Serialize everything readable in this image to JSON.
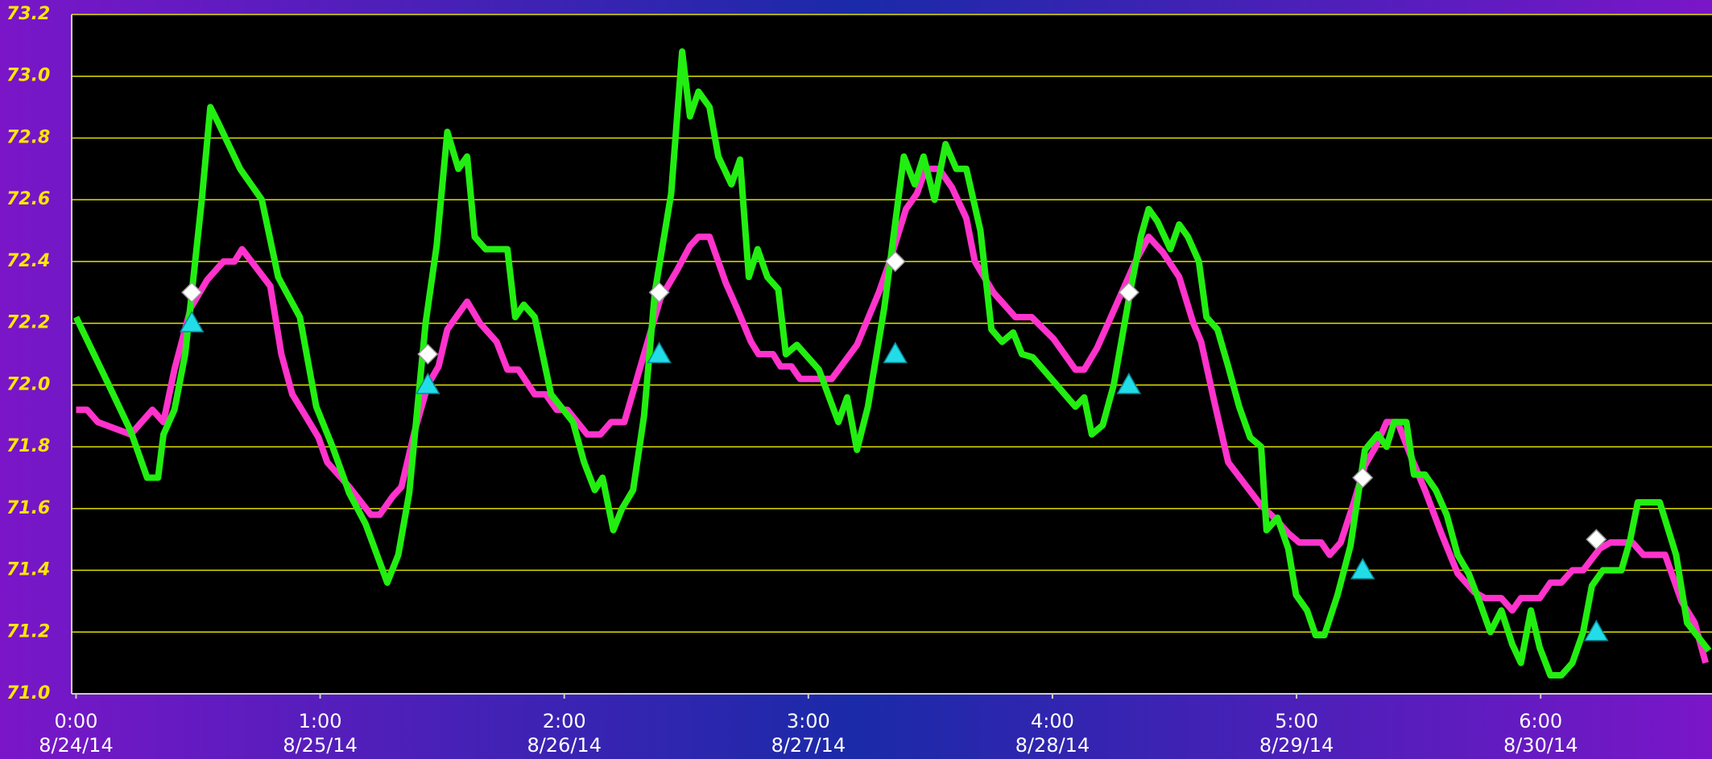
{
  "chart_data": {
    "type": "line",
    "background": [
      "#7a16c8",
      "#1a2aa8",
      "#7a16c8"
    ],
    "plot_background": "#000000",
    "grid": true,
    "grid_color": "#e0e000",
    "xlim": [
      -0.018,
      6.702
    ],
    "xticks": [
      {
        "value": 0,
        "label": "0:00",
        "date": "8/24/14"
      },
      {
        "value": 1,
        "label": "1:00",
        "date": "8/25/14"
      },
      {
        "value": 2,
        "label": "2:00",
        "date": "8/26/14"
      },
      {
        "value": 3,
        "label": "3:00",
        "date": "8/27/14"
      },
      {
        "value": 4,
        "label": "4:00",
        "date": "8/28/14"
      },
      {
        "value": 5,
        "label": "5:00",
        "date": "8/29/14"
      },
      {
        "value": 6,
        "label": "6:00",
        "date": "8/30/14"
      }
    ],
    "ylim": [
      71.0,
      73.2
    ],
    "yticks": [
      {
        "value": 71.0,
        "label": "71.0"
      },
      71.2,
      71.4,
      71.6,
      71.8,
      {
        "value": 72.0,
        "label": "72.0"
      },
      72.2,
      72.4,
      72.6,
      72.8,
      {
        "value": 73.0,
        "label": "73.0"
      },
      73.2
    ],
    "series": [
      {
        "color": "#ff33cc",
        "marker": "line",
        "x": [
          0,
          0.045,
          0.089,
          0.224,
          0.313,
          0.358,
          0.403,
          0.47,
          0.537,
          0.604,
          0.649,
          0.68,
          0.738,
          0.796,
          0.841,
          0.886,
          0.94,
          0.993,
          1.029,
          1.119,
          1.208,
          1.244,
          1.298,
          1.333,
          1.387,
          1.441,
          1.485,
          1.521,
          1.602,
          1.655,
          1.723,
          1.767,
          1.812,
          1.879,
          1.924,
          1.969,
          2.013,
          2.094,
          2.148,
          2.192,
          2.246,
          2.327,
          2.394,
          2.461,
          2.515,
          2.55,
          2.595,
          2.662,
          2.707,
          2.765,
          2.796,
          2.855,
          2.886,
          2.931,
          2.966,
          3.043,
          3.096,
          3.199,
          3.289,
          3.333,
          3.4,
          3.445,
          3.481,
          3.535,
          3.588,
          3.647,
          3.682,
          3.758,
          3.848,
          3.915,
          4.004,
          4.094,
          4.13,
          4.183,
          4.228,
          4.273,
          4.34,
          4.394,
          4.452,
          4.519,
          4.577,
          4.609,
          4.662,
          4.72,
          4.787,
          4.855,
          4.922,
          4.966,
          5.011,
          5.101,
          5.136,
          5.181,
          5.235,
          5.28,
          5.324,
          5.369,
          5.414,
          5.468,
          5.526,
          5.593,
          5.66,
          5.727,
          5.772,
          5.839,
          5.884,
          5.919,
          5.996,
          6.04,
          6.085,
          6.13,
          6.174,
          6.242,
          6.286,
          6.376,
          6.421,
          6.51,
          6.577,
          6.631,
          6.676
        ],
        "values": [
          71.92,
          71.92,
          71.88,
          71.84,
          71.92,
          71.88,
          72.05,
          72.25,
          72.34,
          72.4,
          72.4,
          72.44,
          72.38,
          72.32,
          72.1,
          71.97,
          71.9,
          71.83,
          71.75,
          71.67,
          71.58,
          71.58,
          71.64,
          71.67,
          71.85,
          72.0,
          72.06,
          72.18,
          72.27,
          72.2,
          72.14,
          72.05,
          72.05,
          71.97,
          71.97,
          71.92,
          71.92,
          71.84,
          71.84,
          71.88,
          71.88,
          72.1,
          72.28,
          72.37,
          72.45,
          72.48,
          72.48,
          72.33,
          72.25,
          72.14,
          72.1,
          72.1,
          72.06,
          72.06,
          72.02,
          72.02,
          72.02,
          72.13,
          72.3,
          72.4,
          72.57,
          72.62,
          72.7,
          72.7,
          72.64,
          72.54,
          72.4,
          72.3,
          72.22,
          72.22,
          72.15,
          72.05,
          72.05,
          72.12,
          72.2,
          72.28,
          72.4,
          72.48,
          72.43,
          72.35,
          72.2,
          72.14,
          71.95,
          71.75,
          71.68,
          71.61,
          71.56,
          71.52,
          71.49,
          71.49,
          71.45,
          71.49,
          71.62,
          71.74,
          71.8,
          71.88,
          71.88,
          71.77,
          71.66,
          71.52,
          71.39,
          71.33,
          71.31,
          71.31,
          71.27,
          71.31,
          71.31,
          71.36,
          71.36,
          71.4,
          71.4,
          71.47,
          71.49,
          71.49,
          71.45,
          71.45,
          71.3,
          71.23,
          71.1
        ]
      },
      {
        "color": "#22ee11",
        "marker": "line",
        "x": [
          0,
          0.134,
          0.224,
          0.291,
          0.336,
          0.358,
          0.403,
          0.447,
          0.515,
          0.55,
          0.582,
          0.672,
          0.761,
          0.828,
          0.917,
          0.984,
          1.051,
          1.119,
          1.186,
          1.275,
          1.32,
          1.365,
          1.432,
          1.477,
          1.521,
          1.566,
          1.602,
          1.633,
          1.678,
          1.767,
          1.799,
          1.834,
          1.879,
          1.946,
          2.036,
          2.081,
          2.125,
          2.157,
          2.201,
          2.237,
          2.282,
          2.327,
          2.371,
          2.438,
          2.483,
          2.515,
          2.55,
          2.595,
          2.631,
          2.685,
          2.72,
          2.756,
          2.792,
          2.832,
          2.877,
          2.908,
          2.953,
          3.043,
          3.123,
          3.159,
          3.199,
          3.244,
          3.311,
          3.391,
          3.436,
          3.472,
          3.517,
          3.562,
          3.606,
          3.647,
          3.705,
          3.75,
          3.794,
          3.839,
          3.875,
          3.919,
          4.094,
          4.13,
          4.161,
          4.206,
          4.251,
          4.318,
          4.362,
          4.394,
          4.43,
          4.483,
          4.519,
          4.555,
          4.6,
          4.631,
          4.676,
          4.72,
          4.765,
          4.81,
          4.855,
          4.877,
          4.922,
          4.966,
          4.998,
          5.043,
          5.078,
          5.114,
          5.168,
          5.221,
          5.28,
          5.333,
          5.369,
          5.4,
          5.45,
          5.481,
          5.526,
          5.57,
          5.615,
          5.66,
          5.705,
          5.749,
          5.794,
          5.839,
          5.884,
          5.919,
          5.96,
          5.996,
          6.04,
          6.085,
          6.13,
          6.174,
          6.21,
          6.255,
          6.331,
          6.367,
          6.398,
          6.488,
          6.555,
          6.6,
          6.689
        ],
        "values": [
          72.22,
          72.0,
          71.85,
          71.7,
          71.7,
          71.84,
          71.92,
          72.1,
          72.6,
          72.9,
          72.85,
          72.7,
          72.6,
          72.35,
          72.22,
          71.93,
          71.8,
          71.65,
          71.55,
          71.36,
          71.45,
          71.65,
          72.2,
          72.45,
          72.82,
          72.7,
          72.74,
          72.48,
          72.44,
          72.44,
          72.22,
          72.26,
          72.22,
          71.97,
          71.88,
          71.75,
          71.66,
          71.7,
          71.53,
          71.6,
          71.66,
          71.9,
          72.3,
          72.62,
          73.08,
          72.87,
          72.95,
          72.9,
          72.74,
          72.65,
          72.73,
          72.35,
          72.44,
          72.35,
          72.31,
          72.1,
          72.13,
          72.05,
          71.88,
          71.96,
          71.79,
          71.93,
          72.25,
          72.74,
          72.65,
          72.74,
          72.6,
          72.78,
          72.7,
          72.7,
          72.5,
          72.18,
          72.14,
          72.17,
          72.1,
          72.09,
          71.93,
          71.96,
          71.84,
          71.87,
          72.0,
          72.3,
          72.48,
          72.57,
          72.53,
          72.44,
          72.52,
          72.48,
          72.4,
          72.22,
          72.18,
          72.06,
          71.93,
          71.83,
          71.8,
          71.53,
          71.57,
          71.47,
          71.32,
          71.27,
          71.19,
          71.19,
          71.32,
          71.48,
          71.79,
          71.84,
          71.8,
          71.88,
          71.88,
          71.71,
          71.71,
          71.66,
          71.58,
          71.45,
          71.39,
          71.3,
          71.2,
          71.27,
          71.16,
          71.1,
          71.27,
          71.15,
          71.06,
          71.06,
          71.1,
          71.2,
          71.35,
          71.4,
          71.4,
          71.5,
          71.62,
          71.62,
          71.45,
          71.23,
          71.14
        ]
      },
      {
        "color": "#ffffff",
        "marker": "diamond",
        "x": [
          0.474,
          1.441,
          2.389,
          3.356,
          4.313,
          5.271,
          6.228
        ],
        "values": [
          72.3,
          72.1,
          72.3,
          72.4,
          72.3,
          71.7,
          71.5
        ]
      },
      {
        "color": "#22dde8",
        "marker": "triangle",
        "x": [
          0.474,
          1.441,
          2.389,
          3.356,
          4.313,
          5.271,
          6.228
        ],
        "values": [
          72.2,
          72.0,
          72.1,
          72.1,
          72.0,
          71.4,
          71.2
        ]
      }
    ]
  }
}
